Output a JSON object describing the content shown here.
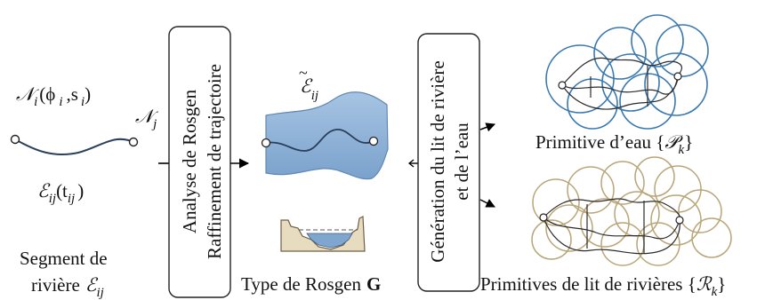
{
  "left": {
    "node_label_main": "𝒩",
    "node_label_sub": "i",
    "node_label_args": "(ϕ",
    "node_label_args_sub": "i",
    "node_label_args2": ",s",
    "node_label_args2_sub": "i",
    "node_label_close": ")",
    "node_j_main": "𝒩",
    "node_j_sub": "j",
    "edge_main": "ℰ",
    "edge_sub": "ij",
    "edge_args": "(t",
    "edge_args_sub": "ij",
    "edge_close": ")",
    "caption_line1": "Segment de",
    "caption_line2": "rivière",
    "caption_sym": "ℰ",
    "caption_sym_sub": "ij"
  },
  "box1": {
    "line1": "Analyse de Rosgen",
    "line2": "Raffinement de trajectoire"
  },
  "middle": {
    "refined_main": "ℰ",
    "refined_tilde": "~",
    "refined_sub": "ij",
    "caption": "Type de Rosgen",
    "caption_bold": "G"
  },
  "box2": {
    "line1": "Génération du lit de rivière",
    "line2": "et de l’eau"
  },
  "right": {
    "water_caption": "Primitive d’eau {",
    "water_sym": "𝒫",
    "water_sub": "k",
    "water_close": "}",
    "bed_caption": "Primitives de lit de rivières {",
    "bed_sym": "ℛ",
    "bed_sub": "k",
    "bed_close": "}"
  },
  "colors": {
    "water_circle": "#3a78b0",
    "bed_circle": "#b9a678",
    "band_fill": "#8fb3d9",
    "band_stroke": "#5f88b4",
    "curve": "#2a3f5a",
    "bank_fill": "#e7dcbf",
    "bank_stroke": "#6e5f46",
    "channel_water": "#7fa6cf"
  }
}
